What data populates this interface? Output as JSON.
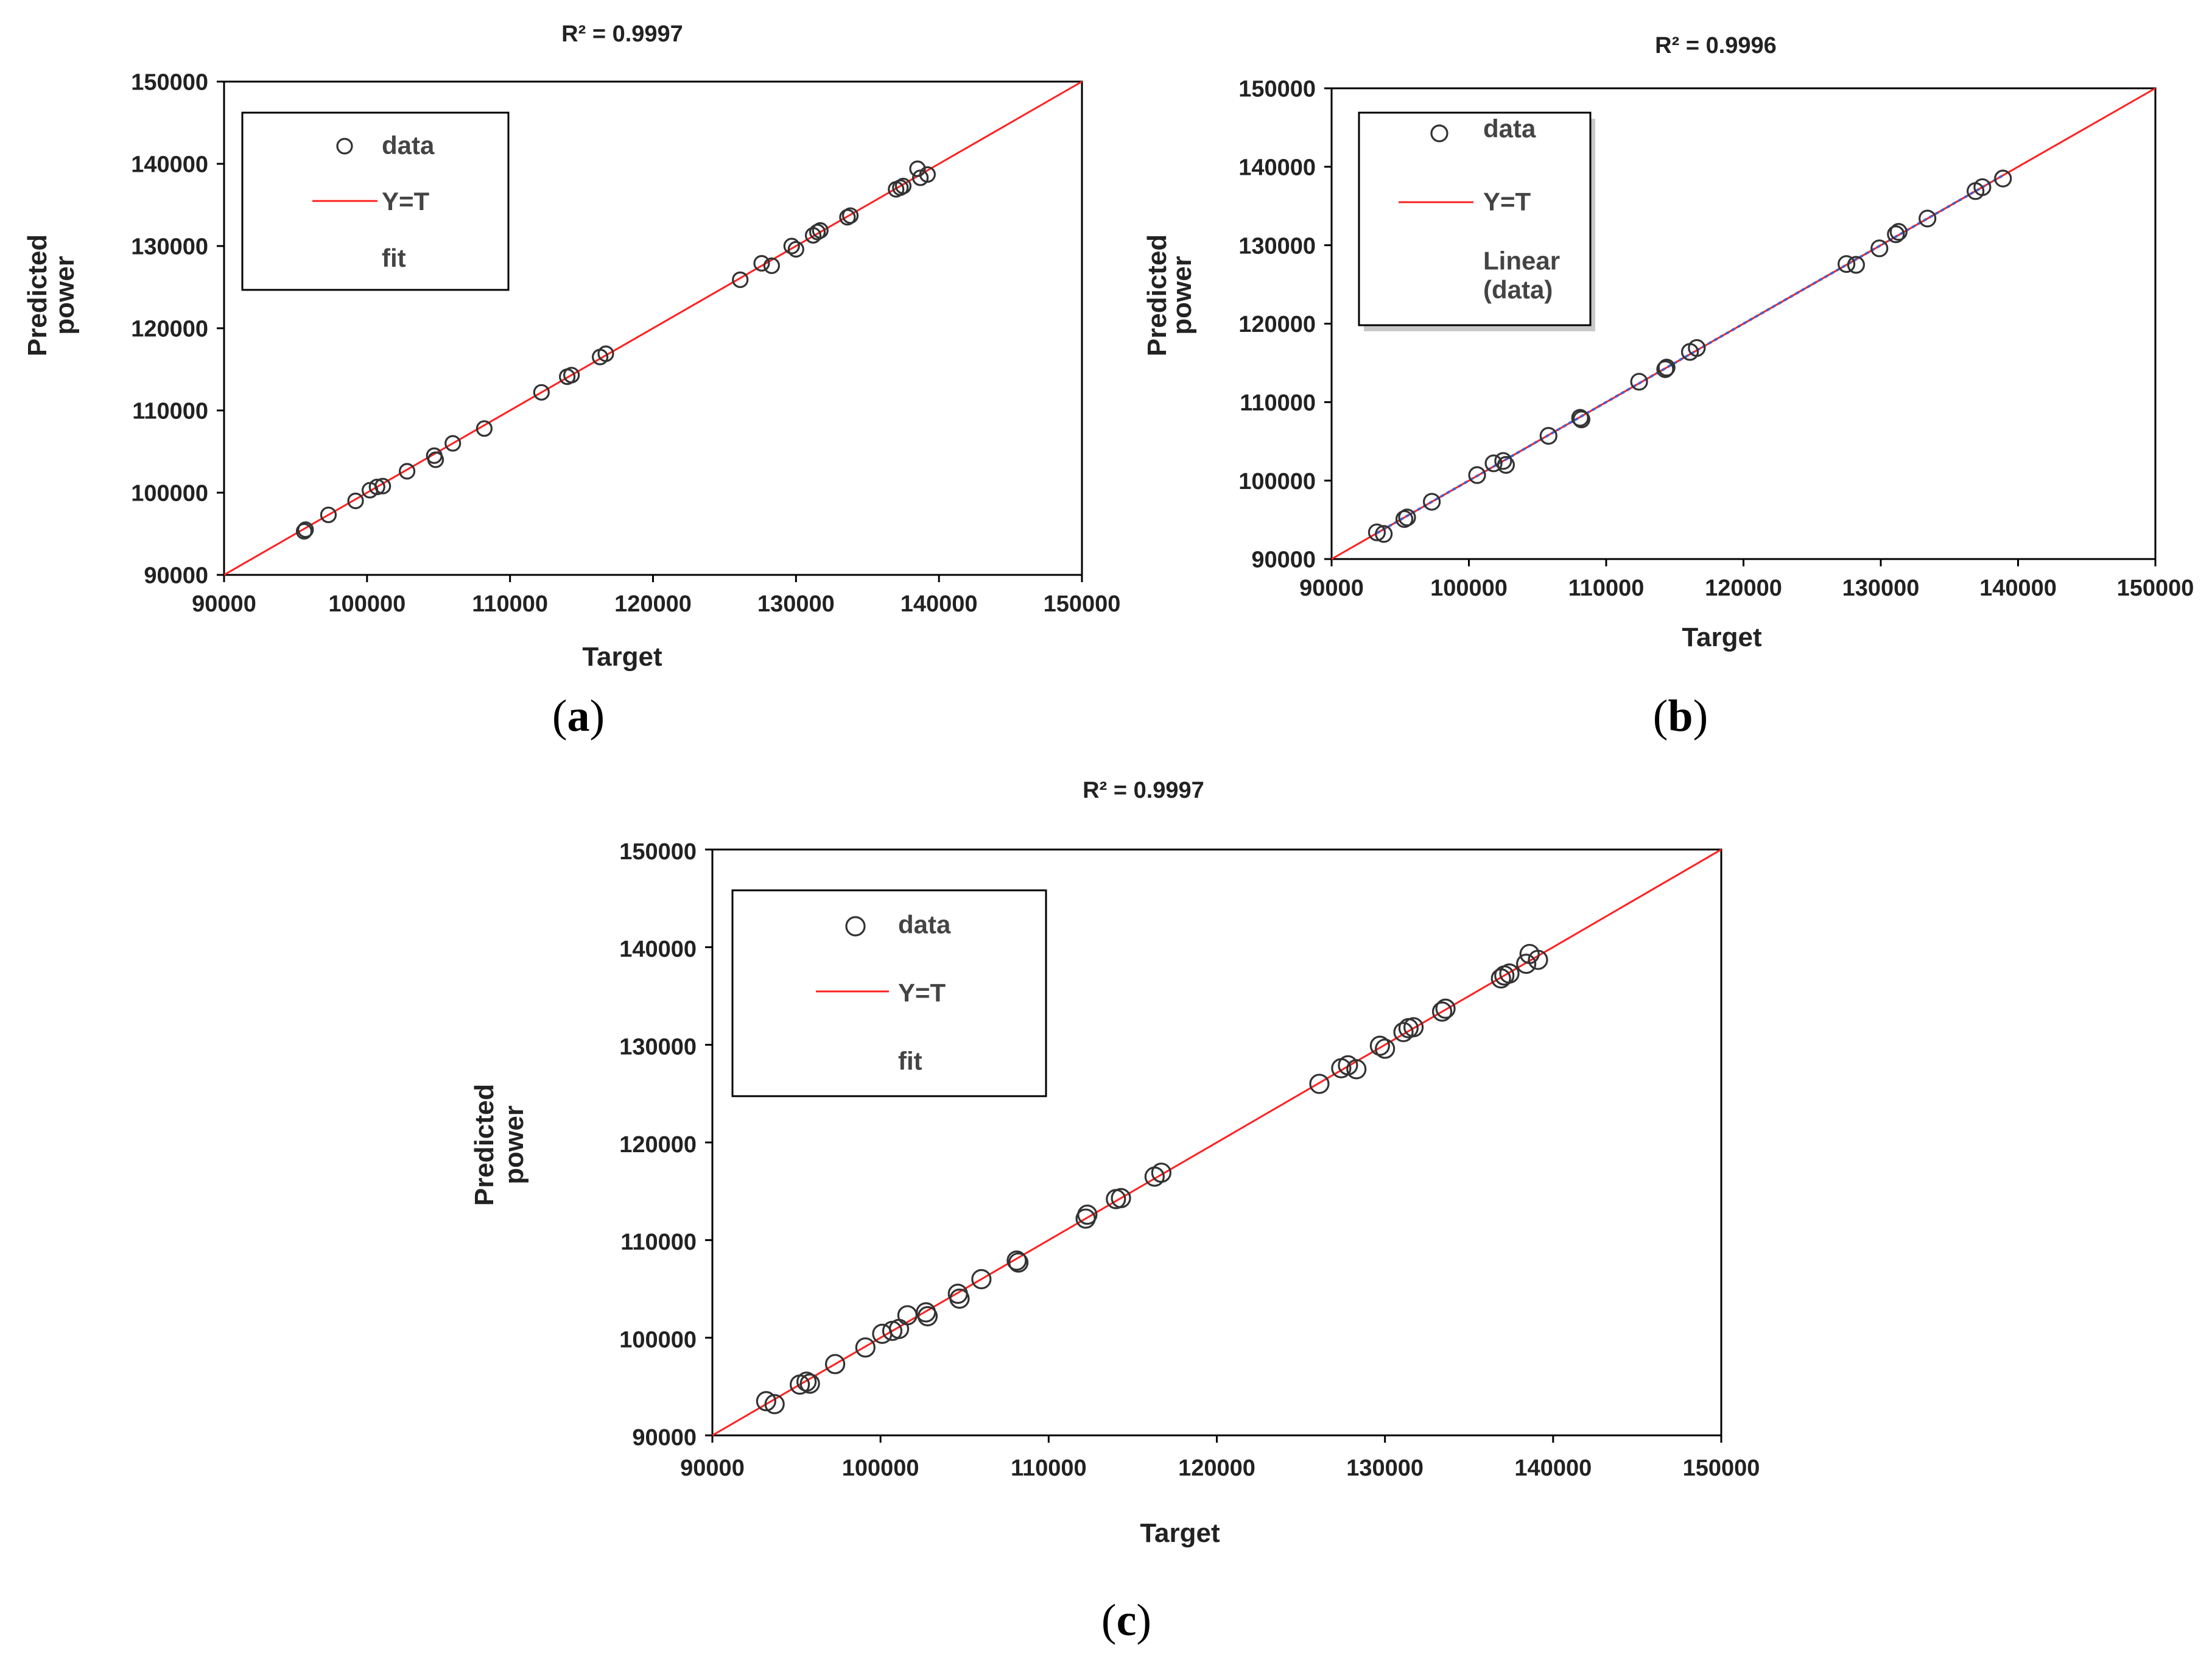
{
  "figure": {
    "panels": [
      {
        "label": "a",
        "title": "R² = 0.9997",
        "ylabel_lines": [
          "Predicted",
          "power"
        ],
        "xlabel": "Target",
        "legend": [
          {
            "kind": "marker",
            "label": "data"
          },
          {
            "kind": "line",
            "label": "Y=T"
          },
          {
            "kind": "text",
            "label": "fit"
          }
        ]
      },
      {
        "label": "b",
        "title": "R² = 0.9996",
        "ylabel_lines": [
          "Predicted",
          "power"
        ],
        "xlabel": "Target",
        "legend": [
          {
            "kind": "marker",
            "label": "data"
          },
          {
            "kind": "line",
            "label": "Y=T"
          },
          {
            "kind": "text",
            "label": "Linear (data)",
            "lines": [
              "Linear",
              "(data)"
            ]
          }
        ]
      },
      {
        "label": "c",
        "title": "R² = 0.9997",
        "ylabel_lines": [
          "Predicted",
          "power"
        ],
        "xlabel": "Target",
        "legend": [
          {
            "kind": "marker",
            "label": "data"
          },
          {
            "kind": "line",
            "label": "Y=T"
          },
          {
            "kind": "text",
            "label": "fit"
          }
        ]
      }
    ]
  },
  "chart_data": [
    {
      "type": "scatter",
      "title": "R² = 0.9997",
      "xlabel": "Target",
      "ylabel": "Predicted power",
      "xlim": [
        90000,
        150000
      ],
      "ylim": [
        90000,
        150000
      ],
      "xticks": [
        "90000",
        "100000",
        "110000",
        "120000",
        "130000",
        "140000",
        "150000"
      ],
      "yticks": [
        "90000",
        "100000",
        "110000",
        "120000",
        "130000",
        "140000",
        "150000"
      ],
      "grid": false,
      "legend_position": "top-left",
      "series": [
        {
          "name": "data",
          "marker": "open-circle",
          "color": "#333333",
          "points": [
            [
              95600,
              95300
            ],
            [
              95700,
              95500
            ],
            [
              97300,
              97300
            ],
            [
              99200,
              99000
            ],
            [
              100200,
              100300
            ],
            [
              100700,
              100700
            ],
            [
              101100,
              100800
            ],
            [
              102800,
              102600
            ],
            [
              104700,
              104500
            ],
            [
              104800,
              104000
            ],
            [
              106000,
              106000
            ],
            [
              108200,
              107800
            ],
            [
              112200,
              112200
            ],
            [
              114000,
              114100
            ],
            [
              114300,
              114300
            ],
            [
              116300,
              116500
            ],
            [
              116700,
              116900
            ],
            [
              126100,
              125900
            ],
            [
              127600,
              127900
            ],
            [
              128300,
              127600
            ],
            [
              129700,
              130000
            ],
            [
              130000,
              129600
            ],
            [
              131200,
              131300
            ],
            [
              131500,
              131700
            ],
            [
              131700,
              131900
            ],
            [
              133600,
              133500
            ],
            [
              133800,
              133700
            ],
            [
              137000,
              136900
            ],
            [
              137300,
              137100
            ],
            [
              137500,
              137300
            ],
            [
              138500,
              139400
            ],
            [
              138700,
              138300
            ],
            [
              139200,
              138700
            ]
          ]
        },
        {
          "name": "Y=T",
          "type": "line",
          "color": "#ff2020",
          "points": [
            [
              90000,
              90000
            ],
            [
              150000,
              150000
            ]
          ]
        }
      ]
    },
    {
      "type": "scatter",
      "title": "R² = 0.9996",
      "xlabel": "Target",
      "ylabel": "Predicted power",
      "xlim": [
        90000,
        150000
      ],
      "ylim": [
        90000,
        150000
      ],
      "xticks": [
        "90000",
        "100000",
        "110000",
        "120000",
        "130000",
        "140000",
        "150000"
      ],
      "yticks": [
        "90000",
        "100000",
        "110000",
        "120000",
        "130000",
        "140000",
        "150000"
      ],
      "grid": false,
      "legend_position": "top-left",
      "series": [
        {
          "name": "data",
          "marker": "open-circle",
          "color": "#333333",
          "points": [
            [
              93300,
              93400
            ],
            [
              93800,
              93200
            ],
            [
              95300,
              95100
            ],
            [
              95500,
              95300
            ],
            [
              97300,
              97300
            ],
            [
              100600,
              100700
            ],
            [
              101800,
              102200
            ],
            [
              102500,
              102500
            ],
            [
              102700,
              102000
            ],
            [
              105800,
              105700
            ],
            [
              108100,
              108000
            ],
            [
              108200,
              107800
            ],
            [
              112400,
              112600
            ],
            [
              114300,
              114200
            ],
            [
              114400,
              114400
            ],
            [
              116100,
              116400
            ],
            [
              116600,
              116900
            ],
            [
              127500,
              127600
            ],
            [
              128200,
              127500
            ],
            [
              129900,
              129600
            ],
            [
              131100,
              131400
            ],
            [
              131300,
              131700
            ],
            [
              133400,
              133400
            ],
            [
              136900,
              136900
            ],
            [
              137400,
              137400
            ],
            [
              138900,
              138500
            ]
          ]
        },
        {
          "name": "Y=T",
          "type": "line",
          "color": "#ff2020",
          "points": [
            [
              90000,
              90000
            ],
            [
              150000,
              150000
            ]
          ]
        },
        {
          "name": "Linear (data)",
          "type": "line",
          "style": "dotted",
          "color": "#4a5fc8",
          "points": [
            [
              93300,
              93300
            ],
            [
              138900,
              138900
            ]
          ]
        }
      ]
    },
    {
      "type": "scatter",
      "title": "R² = 0.9997",
      "xlabel": "Target",
      "ylabel": "Predicted power",
      "xlim": [
        90000,
        150000
      ],
      "ylim": [
        90000,
        150000
      ],
      "xticks": [
        "90000",
        "100000",
        "110000",
        "120000",
        "130000",
        "140000",
        "150000"
      ],
      "yticks": [
        "90000",
        "100000",
        "110000",
        "120000",
        "130000",
        "140000",
        "150000"
      ],
      "grid": false,
      "legend_position": "top-left",
      "series": [
        {
          "name": "data",
          "marker": "open-circle",
          "color": "#333333",
          "points": [
            [
              93200,
              93500
            ],
            [
              93700,
              93200
            ],
            [
              95200,
              95200
            ],
            [
              95600,
              95500
            ],
            [
              95800,
              95300
            ],
            [
              97300,
              97300
            ],
            [
              99100,
              99000
            ],
            [
              100100,
              100400
            ],
            [
              100700,
              100700
            ],
            [
              101100,
              100900
            ],
            [
              101600,
              102300
            ],
            [
              102700,
              102600
            ],
            [
              102800,
              102200
            ],
            [
              104600,
              104500
            ],
            [
              104700,
              104000
            ],
            [
              106000,
              106000
            ],
            [
              108100,
              107900
            ],
            [
              108200,
              107700
            ],
            [
              112200,
              112200
            ],
            [
              112300,
              112600
            ],
            [
              114000,
              114200
            ],
            [
              114300,
              114300
            ],
            [
              116300,
              116500
            ],
            [
              116700,
              116900
            ],
            [
              126100,
              126000
            ],
            [
              127400,
              127600
            ],
            [
              127800,
              127900
            ],
            [
              128300,
              127500
            ],
            [
              129700,
              129900
            ],
            [
              130000,
              129600
            ],
            [
              131100,
              131300
            ],
            [
              131400,
              131700
            ],
            [
              131700,
              131800
            ],
            [
              133400,
              133400
            ],
            [
              133600,
              133700
            ],
            [
              136900,
              136800
            ],
            [
              137100,
              137100
            ],
            [
              137400,
              137300
            ],
            [
              138400,
              138300
            ],
            [
              138600,
              139300
            ],
            [
              139100,
              138700
            ]
          ]
        },
        {
          "name": "Y=T",
          "type": "line",
          "color": "#ff2020",
          "points": [
            [
              90000,
              90000
            ],
            [
              150000,
              150000
            ]
          ]
        }
      ]
    }
  ]
}
